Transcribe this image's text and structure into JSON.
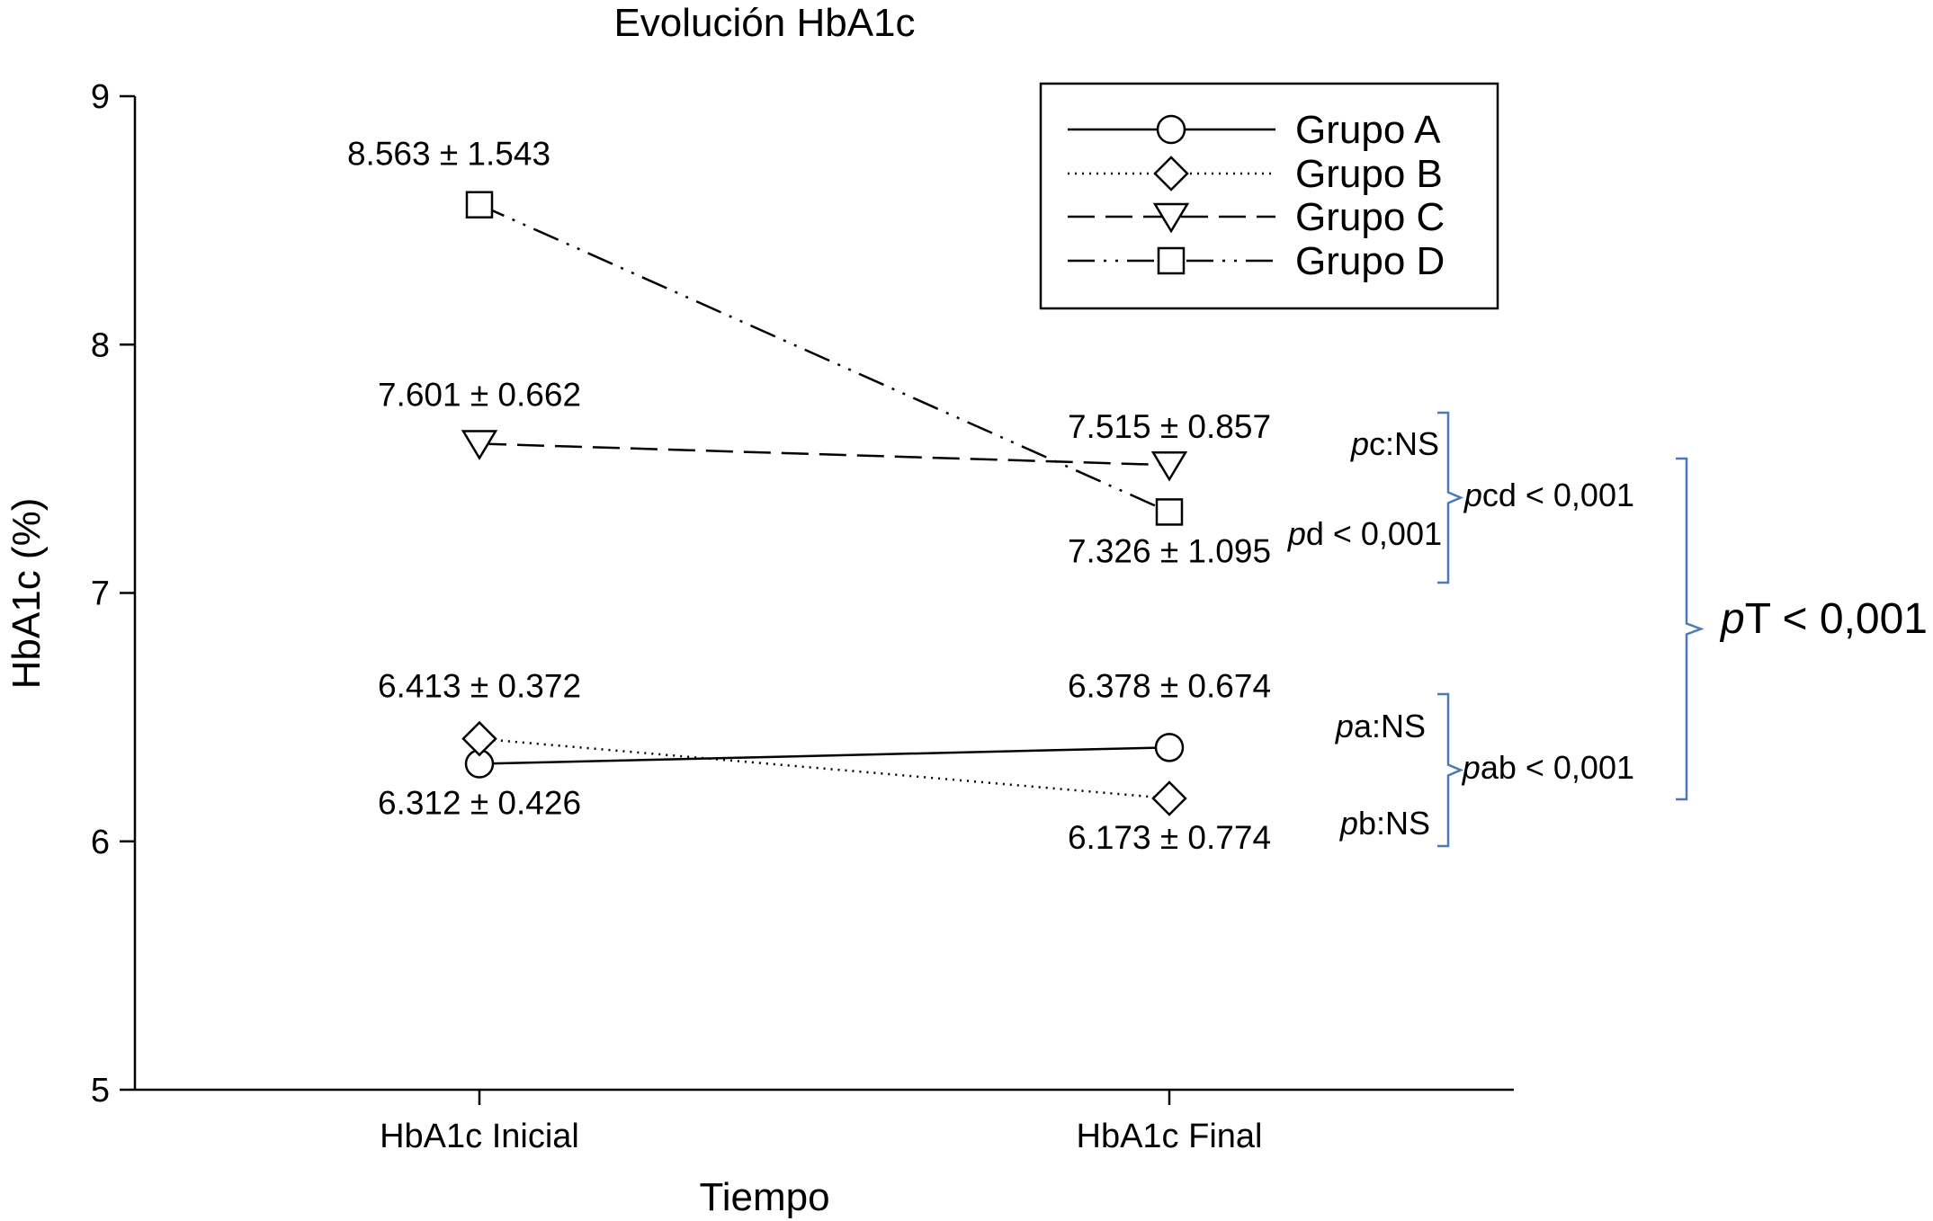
{
  "chart_data": {
    "type": "line",
    "title": "Evolución HbA1c",
    "xlabel": "Tiempo",
    "ylabel": "HbA1c (%)",
    "ylim": [
      5,
      9
    ],
    "yticks": [
      "5",
      "6",
      "7",
      "8",
      "9"
    ],
    "categories": [
      "HbA1c Inicial",
      "HbA1c Final"
    ],
    "legend_position": "top-right",
    "series": [
      {
        "name": "Grupo A",
        "marker": "circle",
        "dash": "solid",
        "values": [
          6.312,
          6.378
        ],
        "labels": [
          "6.312 ± 0.426",
          "6.378 ± 0.674"
        ]
      },
      {
        "name": "Grupo B",
        "marker": "diamond",
        "dash": "dotted",
        "values": [
          6.413,
          6.173
        ],
        "labels": [
          "6.413 ± 0.372",
          "6.173 ± 0.774"
        ]
      },
      {
        "name": "Grupo C",
        "marker": "triangle-down",
        "dash": "dashed",
        "values": [
          7.601,
          7.515
        ],
        "labels": [
          "7.601 ± 0.662",
          "7.515 ± 0.857"
        ]
      },
      {
        "name": "Grupo D",
        "marker": "square",
        "dash": "dash-dot-dot",
        "values": [
          8.563,
          7.326
        ],
        "labels": [
          "8.563 ± 1.543",
          "7.326 ± 1.095"
        ]
      }
    ],
    "annotations": {
      "pc": {
        "italic": "p",
        "rest": "c:NS"
      },
      "pd": {
        "italic": "p",
        "rest": "d < 0,001"
      },
      "pcd": {
        "italic": "p",
        "rest": "cd < 0,001"
      },
      "pa": {
        "italic": "p",
        "rest": "a:NS"
      },
      "pb": {
        "italic": "p",
        "rest": "b:NS"
      },
      "pab": {
        "italic": "p",
        "rest": "ab < 0,001"
      },
      "pT": {
        "italic": "p",
        "rest": "T < 0,001"
      }
    },
    "bracket_color": "#4a7ab8"
  }
}
